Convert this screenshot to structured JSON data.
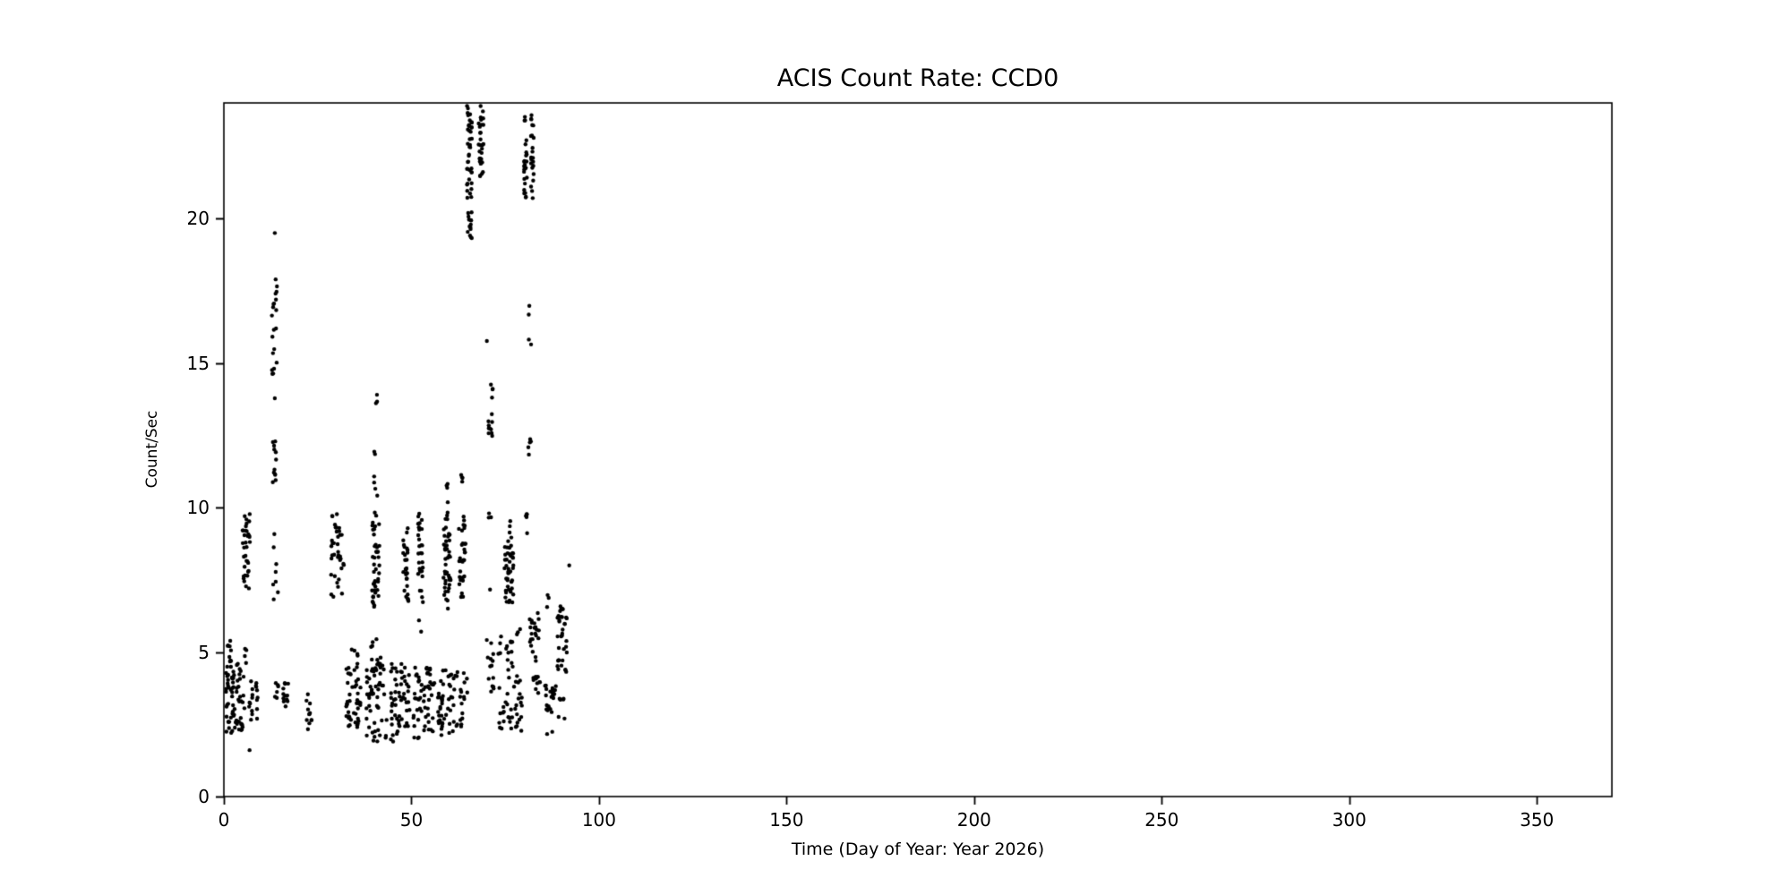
{
  "chart_data": {
    "type": "scatter",
    "title": "ACIS Count Rate: CCD0",
    "xlabel": "Time (Day of Year: Year 2026)",
    "ylabel": "Count/Sec",
    "xlim": [
      0,
      370
    ],
    "ylim": [
      0,
      24
    ],
    "xticks": [
      0,
      50,
      100,
      150,
      200,
      250,
      300,
      350
    ],
    "yticks": [
      0,
      5,
      10,
      15,
      20
    ],
    "grid": false,
    "legend": "none",
    "marker_color": "#000000",
    "axis_color": "#000000",
    "background_color": "#ffffff",
    "cluster_format": [
      "day_min",
      "day_max",
      "rate_min",
      "rate_max",
      "n_points"
    ],
    "clusters_note": "Vertical streaks of black dots; data only for days ~0-93, empty beyond. Tall streaks near days 65-68 and 80-82 are clipped at the top of the axes (~24 counts/sec).",
    "clusters": [
      [
        0.5,
        3.0,
        2.2,
        4.8,
        45
      ],
      [
        1.0,
        2.0,
        4.8,
        5.4,
        6
      ],
      [
        3.0,
        5.5,
        2.3,
        4.6,
        30
      ],
      [
        5.0,
        7.0,
        7.0,
        9.8,
        35
      ],
      [
        5.5,
        6.5,
        4.6,
        5.2,
        4
      ],
      [
        6.5,
        9.0,
        2.6,
        4.4,
        18
      ],
      [
        6.8,
        7.2,
        1.6,
        1.8,
        1
      ],
      [
        12.8,
        14.2,
        14.4,
        18.1,
        20
      ],
      [
        13.0,
        14.0,
        10.7,
        12.3,
        12
      ],
      [
        13.3,
        13.7,
        19.4,
        19.6,
        1
      ],
      [
        13.4,
        13.8,
        13.6,
        13.8,
        1
      ],
      [
        13.0,
        14.5,
        6.6,
        9.8,
        8
      ],
      [
        13.0,
        14.5,
        3.4,
        4.2,
        6
      ],
      [
        15.8,
        17.2,
        3.1,
        4.0,
        12
      ],
      [
        22.0,
        23.5,
        2.2,
        3.6,
        12
      ],
      [
        28.5,
        31.5,
        6.8,
        9.8,
        35
      ],
      [
        31.8,
        32.3,
        7.9,
        8.1,
        2
      ],
      [
        32.5,
        36.5,
        2.4,
        4.5,
        45
      ],
      [
        34.0,
        36.0,
        4.5,
        5.2,
        5
      ],
      [
        38.0,
        43.5,
        1.9,
        4.6,
        55
      ],
      [
        39.0,
        42.0,
        4.6,
        5.5,
        8
      ],
      [
        39.5,
        41.5,
        6.5,
        9.6,
        40
      ],
      [
        40.0,
        41.0,
        9.6,
        12.3,
        8
      ],
      [
        40.3,
        40.9,
        13.5,
        14.6,
        3
      ],
      [
        44.5,
        49.5,
        1.9,
        4.6,
        55
      ],
      [
        47.8,
        49.2,
        6.7,
        9.4,
        28
      ],
      [
        50.5,
        56.5,
        2.0,
        4.5,
        55
      ],
      [
        51.8,
        53.2,
        6.7,
        9.8,
        30
      ],
      [
        52.0,
        53.0,
        5.7,
        6.1,
        2
      ],
      [
        57.0,
        58.5,
        2.1,
        4.3,
        20
      ],
      [
        58.5,
        60.5,
        6.5,
        9.9,
        45
      ],
      [
        59.0,
        60.0,
        10.1,
        11.0,
        4
      ],
      [
        58.0,
        62.5,
        2.1,
        4.4,
        30
      ],
      [
        62.5,
        64.5,
        6.6,
        9.8,
        30
      ],
      [
        63.0,
        64.0,
        10.3,
        11.2,
        4
      ],
      [
        63.0,
        65.0,
        2.3,
        4.3,
        15
      ],
      [
        64.8,
        66.2,
        19.3,
        23.9,
        55
      ],
      [
        67.8,
        69.2,
        21.3,
        23.9,
        30
      ],
      [
        69.8,
        70.2,
        15.7,
        15.9,
        1
      ],
      [
        70.3,
        71.7,
        12.3,
        14.3,
        14
      ],
      [
        70.5,
        71.5,
        9.5,
        9.9,
        3
      ],
      [
        70.0,
        72.0,
        3.6,
        5.5,
        14
      ],
      [
        70.8,
        71.2,
        7.1,
        7.3,
        1
      ],
      [
        73.0,
        77.5,
        2.3,
        5.6,
        35
      ],
      [
        74.8,
        77.2,
        6.7,
        9.2,
        45
      ],
      [
        75.5,
        76.5,
        9.3,
        9.6,
        2
      ],
      [
        77.5,
        79.5,
        2.2,
        4.2,
        18
      ],
      [
        78.0,
        79.0,
        5.5,
        6.0,
        3
      ],
      [
        80.0,
        80.8,
        20.6,
        23.9,
        25
      ],
      [
        81.8,
        82.6,
        20.5,
        23.9,
        22
      ],
      [
        81.0,
        82.0,
        15.4,
        17.1,
        4
      ],
      [
        81.0,
        82.0,
        11.7,
        12.7,
        5
      ],
      [
        80.5,
        81.5,
        9.1,
        9.8,
        5
      ],
      [
        81.5,
        84.0,
        4.3,
        6.5,
        22
      ],
      [
        82.0,
        84.5,
        3.4,
        4.3,
        10
      ],
      [
        85.5,
        88.5,
        2.1,
        4.0,
        25
      ],
      [
        85.8,
        86.6,
        6.5,
        7.0,
        3
      ],
      [
        88.8,
        91.5,
        4.3,
        6.6,
        35
      ],
      [
        89.0,
        91.0,
        2.6,
        3.4,
        6
      ],
      [
        91.8,
        92.2,
        7.8,
        8.0,
        1
      ]
    ]
  }
}
